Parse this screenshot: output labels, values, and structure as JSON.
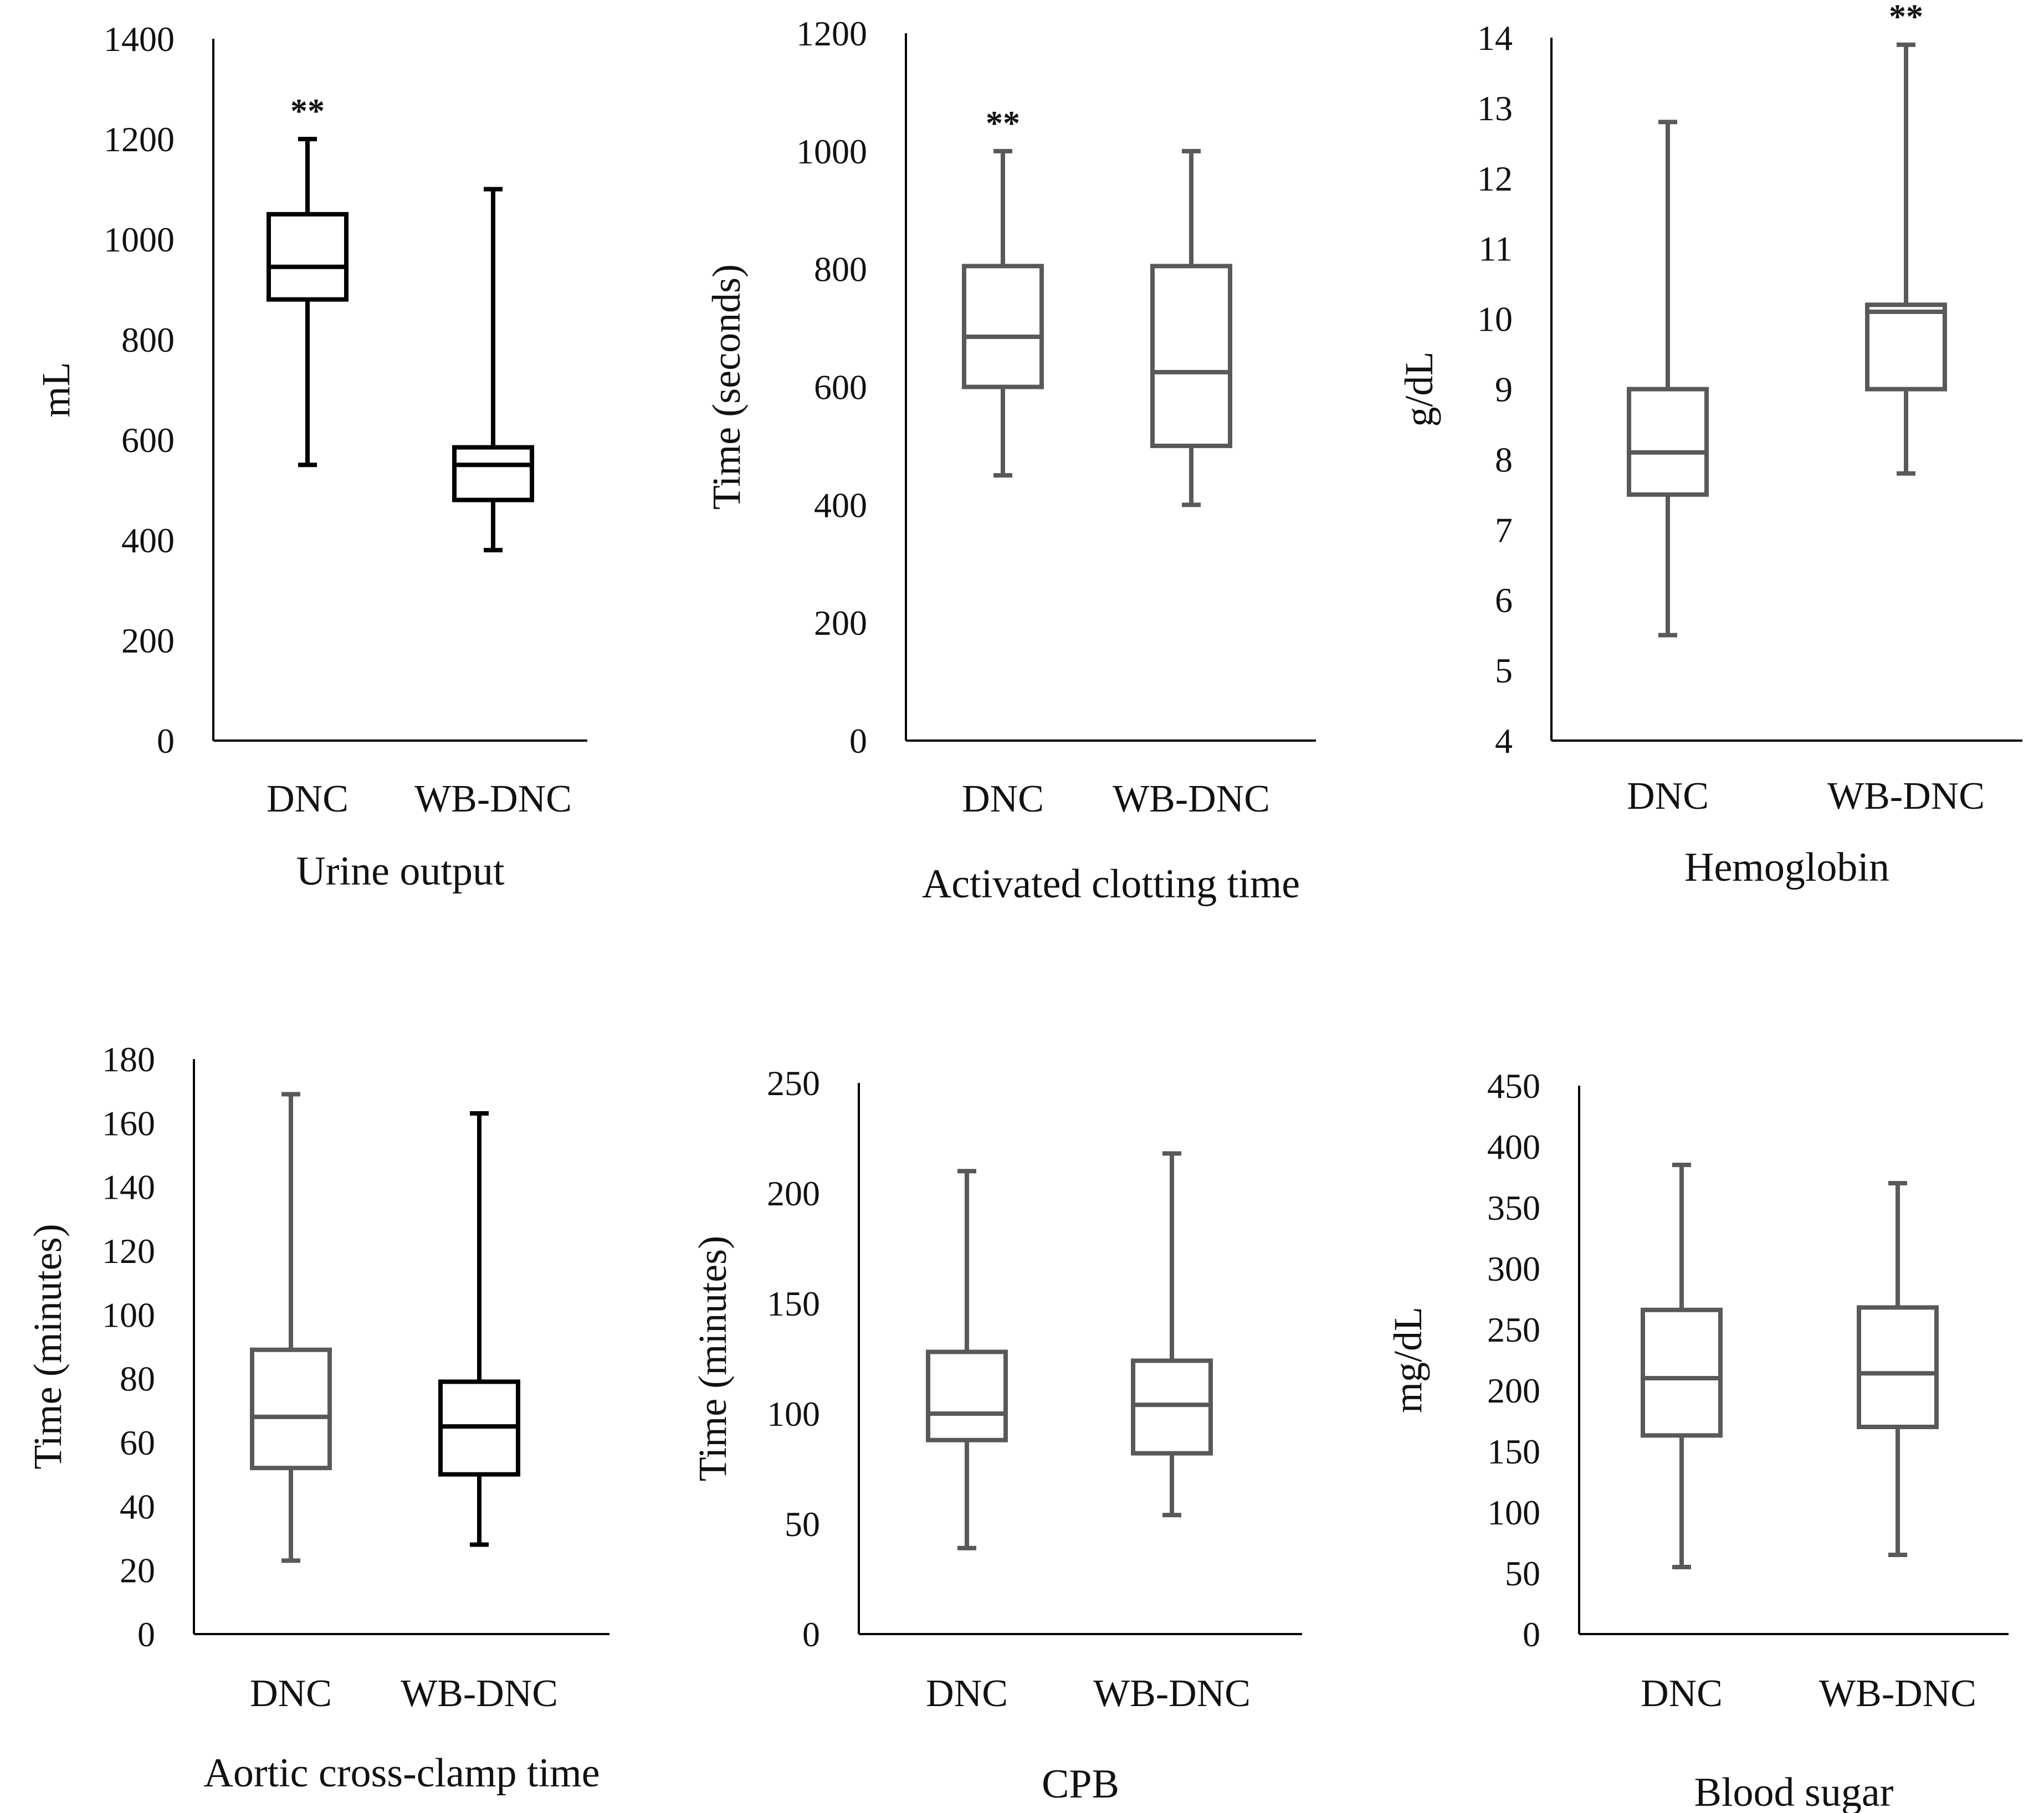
{
  "colors": {
    "dark_box": "#000000",
    "gray_box": "#595959",
    "axis": "#000000",
    "text": "#111111"
  },
  "chart_data": [
    {
      "type": "boxplot",
      "title": "Urine output",
      "ylabel": "mL",
      "ylim": [
        0,
        1400
      ],
      "yticks": [
        0,
        200,
        400,
        600,
        800,
        1000,
        1200,
        1400
      ],
      "categories": [
        "DNC",
        "WB-DNC"
      ],
      "series": [
        {
          "name": "DNC",
          "min": 550,
          "q1": 880,
          "median": 945,
          "q3": 1050,
          "max": 1200,
          "annotation": "**"
        },
        {
          "name": "WB-DNC",
          "min": 380,
          "q1": 480,
          "median": 550,
          "q3": 585,
          "max": 1100,
          "annotation": ""
        }
      ],
      "stroke": "dark"
    },
    {
      "type": "boxplot",
      "title": "Activated clotting time",
      "ylabel": "Time (seconds)",
      "ylim": [
        0,
        1200
      ],
      "yticks": [
        0,
        200,
        400,
        600,
        800,
        1000,
        1200
      ],
      "categories": [
        "DNC",
        "WB-DNC"
      ],
      "series": [
        {
          "name": "DNC",
          "min": 450,
          "q1": 600,
          "median": 685,
          "q3": 805,
          "max": 1000,
          "annotation": "**"
        },
        {
          "name": "WB-DNC",
          "min": 400,
          "q1": 500,
          "median": 625,
          "q3": 805,
          "max": 1000,
          "annotation": ""
        }
      ],
      "stroke": "gray"
    },
    {
      "type": "boxplot",
      "title": "Hemoglobin",
      "ylabel": "g/dL",
      "ylim": [
        4,
        14
      ],
      "yticks": [
        4,
        5,
        6,
        7,
        8,
        9,
        10,
        11,
        12,
        13,
        14
      ],
      "categories": [
        "DNC",
        "WB-DNC"
      ],
      "series": [
        {
          "name": "DNC",
          "min": 5.5,
          "q1": 7.5,
          "median": 8.1,
          "q3": 9.0,
          "max": 12.8,
          "annotation": ""
        },
        {
          "name": "WB-DNC",
          "min": 7.8,
          "q1": 9.0,
          "median": 10.1,
          "q3": 10.2,
          "max": 13.9,
          "annotation": "**"
        }
      ],
      "stroke": "gray"
    },
    {
      "type": "boxplot",
      "title": "Aortic cross-clamp time",
      "ylabel": "Time (minutes)",
      "ylim": [
        0,
        180
      ],
      "yticks": [
        0,
        20,
        40,
        60,
        80,
        100,
        120,
        140,
        160,
        180
      ],
      "categories": [
        "DNC",
        "WB-DNC"
      ],
      "series": [
        {
          "name": "DNC",
          "min": 23,
          "q1": 52,
          "median": 68,
          "q3": 89,
          "max": 169,
          "annotation": ""
        },
        {
          "name": "WB-DNC",
          "min": 28,
          "q1": 50,
          "median": 65,
          "q3": 79,
          "max": 163,
          "annotation": ""
        }
      ],
      "stroke": "mixed"
    },
    {
      "type": "boxplot",
      "title": "CPB",
      "ylabel": "Time (minutes)",
      "ylim": [
        0,
        250
      ],
      "yticks": [
        0,
        50,
        100,
        150,
        200,
        250
      ],
      "categories": [
        "DNC",
        "WB-DNC"
      ],
      "series": [
        {
          "name": "DNC",
          "min": 39,
          "q1": 88,
          "median": 100,
          "q3": 128,
          "max": 210,
          "annotation": ""
        },
        {
          "name": "WB-DNC",
          "min": 54,
          "q1": 82,
          "median": 104,
          "q3": 124,
          "max": 218,
          "annotation": ""
        }
      ],
      "stroke": "gray"
    },
    {
      "type": "boxplot",
      "title": "Blood sugar",
      "ylabel": "mg/dL",
      "ylim": [
        0,
        450
      ],
      "yticks": [
        0,
        50,
        100,
        150,
        200,
        250,
        300,
        350,
        400,
        450
      ],
      "categories": [
        "DNC",
        "WB-DNC"
      ],
      "series": [
        {
          "name": "DNC",
          "min": 55,
          "q1": 163,
          "median": 210,
          "q3": 266,
          "max": 385,
          "annotation": ""
        },
        {
          "name": "WB-DNC",
          "min": 65,
          "q1": 170,
          "median": 214,
          "q3": 268,
          "max": 370,
          "annotation": ""
        }
      ],
      "stroke": "gray"
    }
  ]
}
